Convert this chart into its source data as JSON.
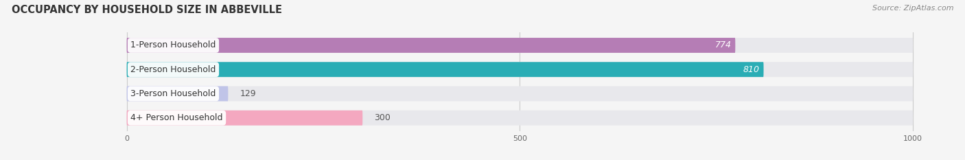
{
  "title": "OCCUPANCY BY HOUSEHOLD SIZE IN ABBEVILLE",
  "source": "Source: ZipAtlas.com",
  "categories": [
    "1-Person Household",
    "2-Person Household",
    "3-Person Household",
    "4+ Person Household"
  ],
  "values": [
    774,
    810,
    129,
    300
  ],
  "bar_colors": [
    "#b57db5",
    "#2aadb5",
    "#c0c4e8",
    "#f4a8c0"
  ],
  "label_inside": [
    true,
    true,
    false,
    false
  ],
  "track_color": "#e8e8ec",
  "xlim_min": -155,
  "xlim_max": 1060,
  "x_max_track": 1000,
  "xticks": [
    0,
    500,
    1000
  ],
  "background_color": "#f5f5f5",
  "bar_height": 0.62,
  "title_fontsize": 10.5,
  "source_fontsize": 8,
  "label_fontsize": 9,
  "value_fontsize": 9,
  "grid_color": "#cccccc"
}
